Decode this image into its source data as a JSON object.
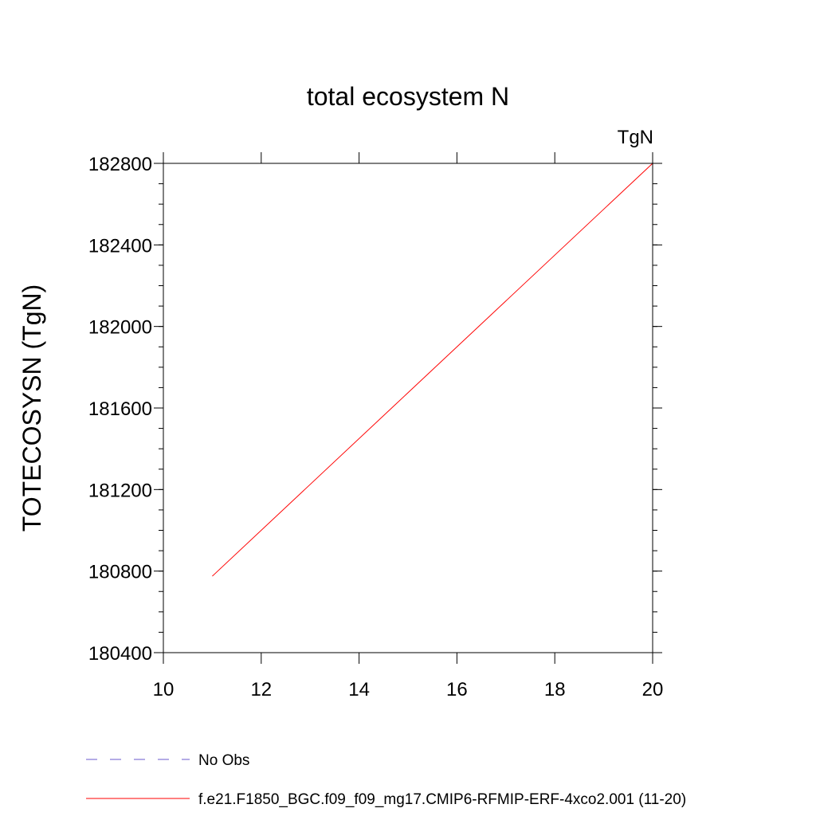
{
  "chart_data": {
    "type": "line",
    "title": "total ecosystem N",
    "units_label": "TgN",
    "xlabel": "",
    "ylabel": "TOTECOSYSN  (TgN)",
    "xlim": [
      10,
      20
    ],
    "ylim": [
      180400,
      182800
    ],
    "xticks": [
      "10",
      "12",
      "14",
      "16",
      "18",
      "20"
    ],
    "yticks": [
      "180400",
      "180800",
      "181200",
      "181600",
      "182000",
      "182400",
      "182800"
    ],
    "grid": false,
    "legend": "bottom",
    "series": [
      {
        "name": "No Obs",
        "color": "#6a5acd",
        "style": "dashed",
        "x": [],
        "y": []
      },
      {
        "name": "f.e21.F1850_BGC.f09_f09_mg17.CMIP6-RFMIP-ERF-4xco2.001 (11-20)",
        "color": "#ff0000",
        "style": "solid",
        "x": [
          11,
          20
        ],
        "y": [
          180775,
          182800
        ]
      }
    ]
  }
}
